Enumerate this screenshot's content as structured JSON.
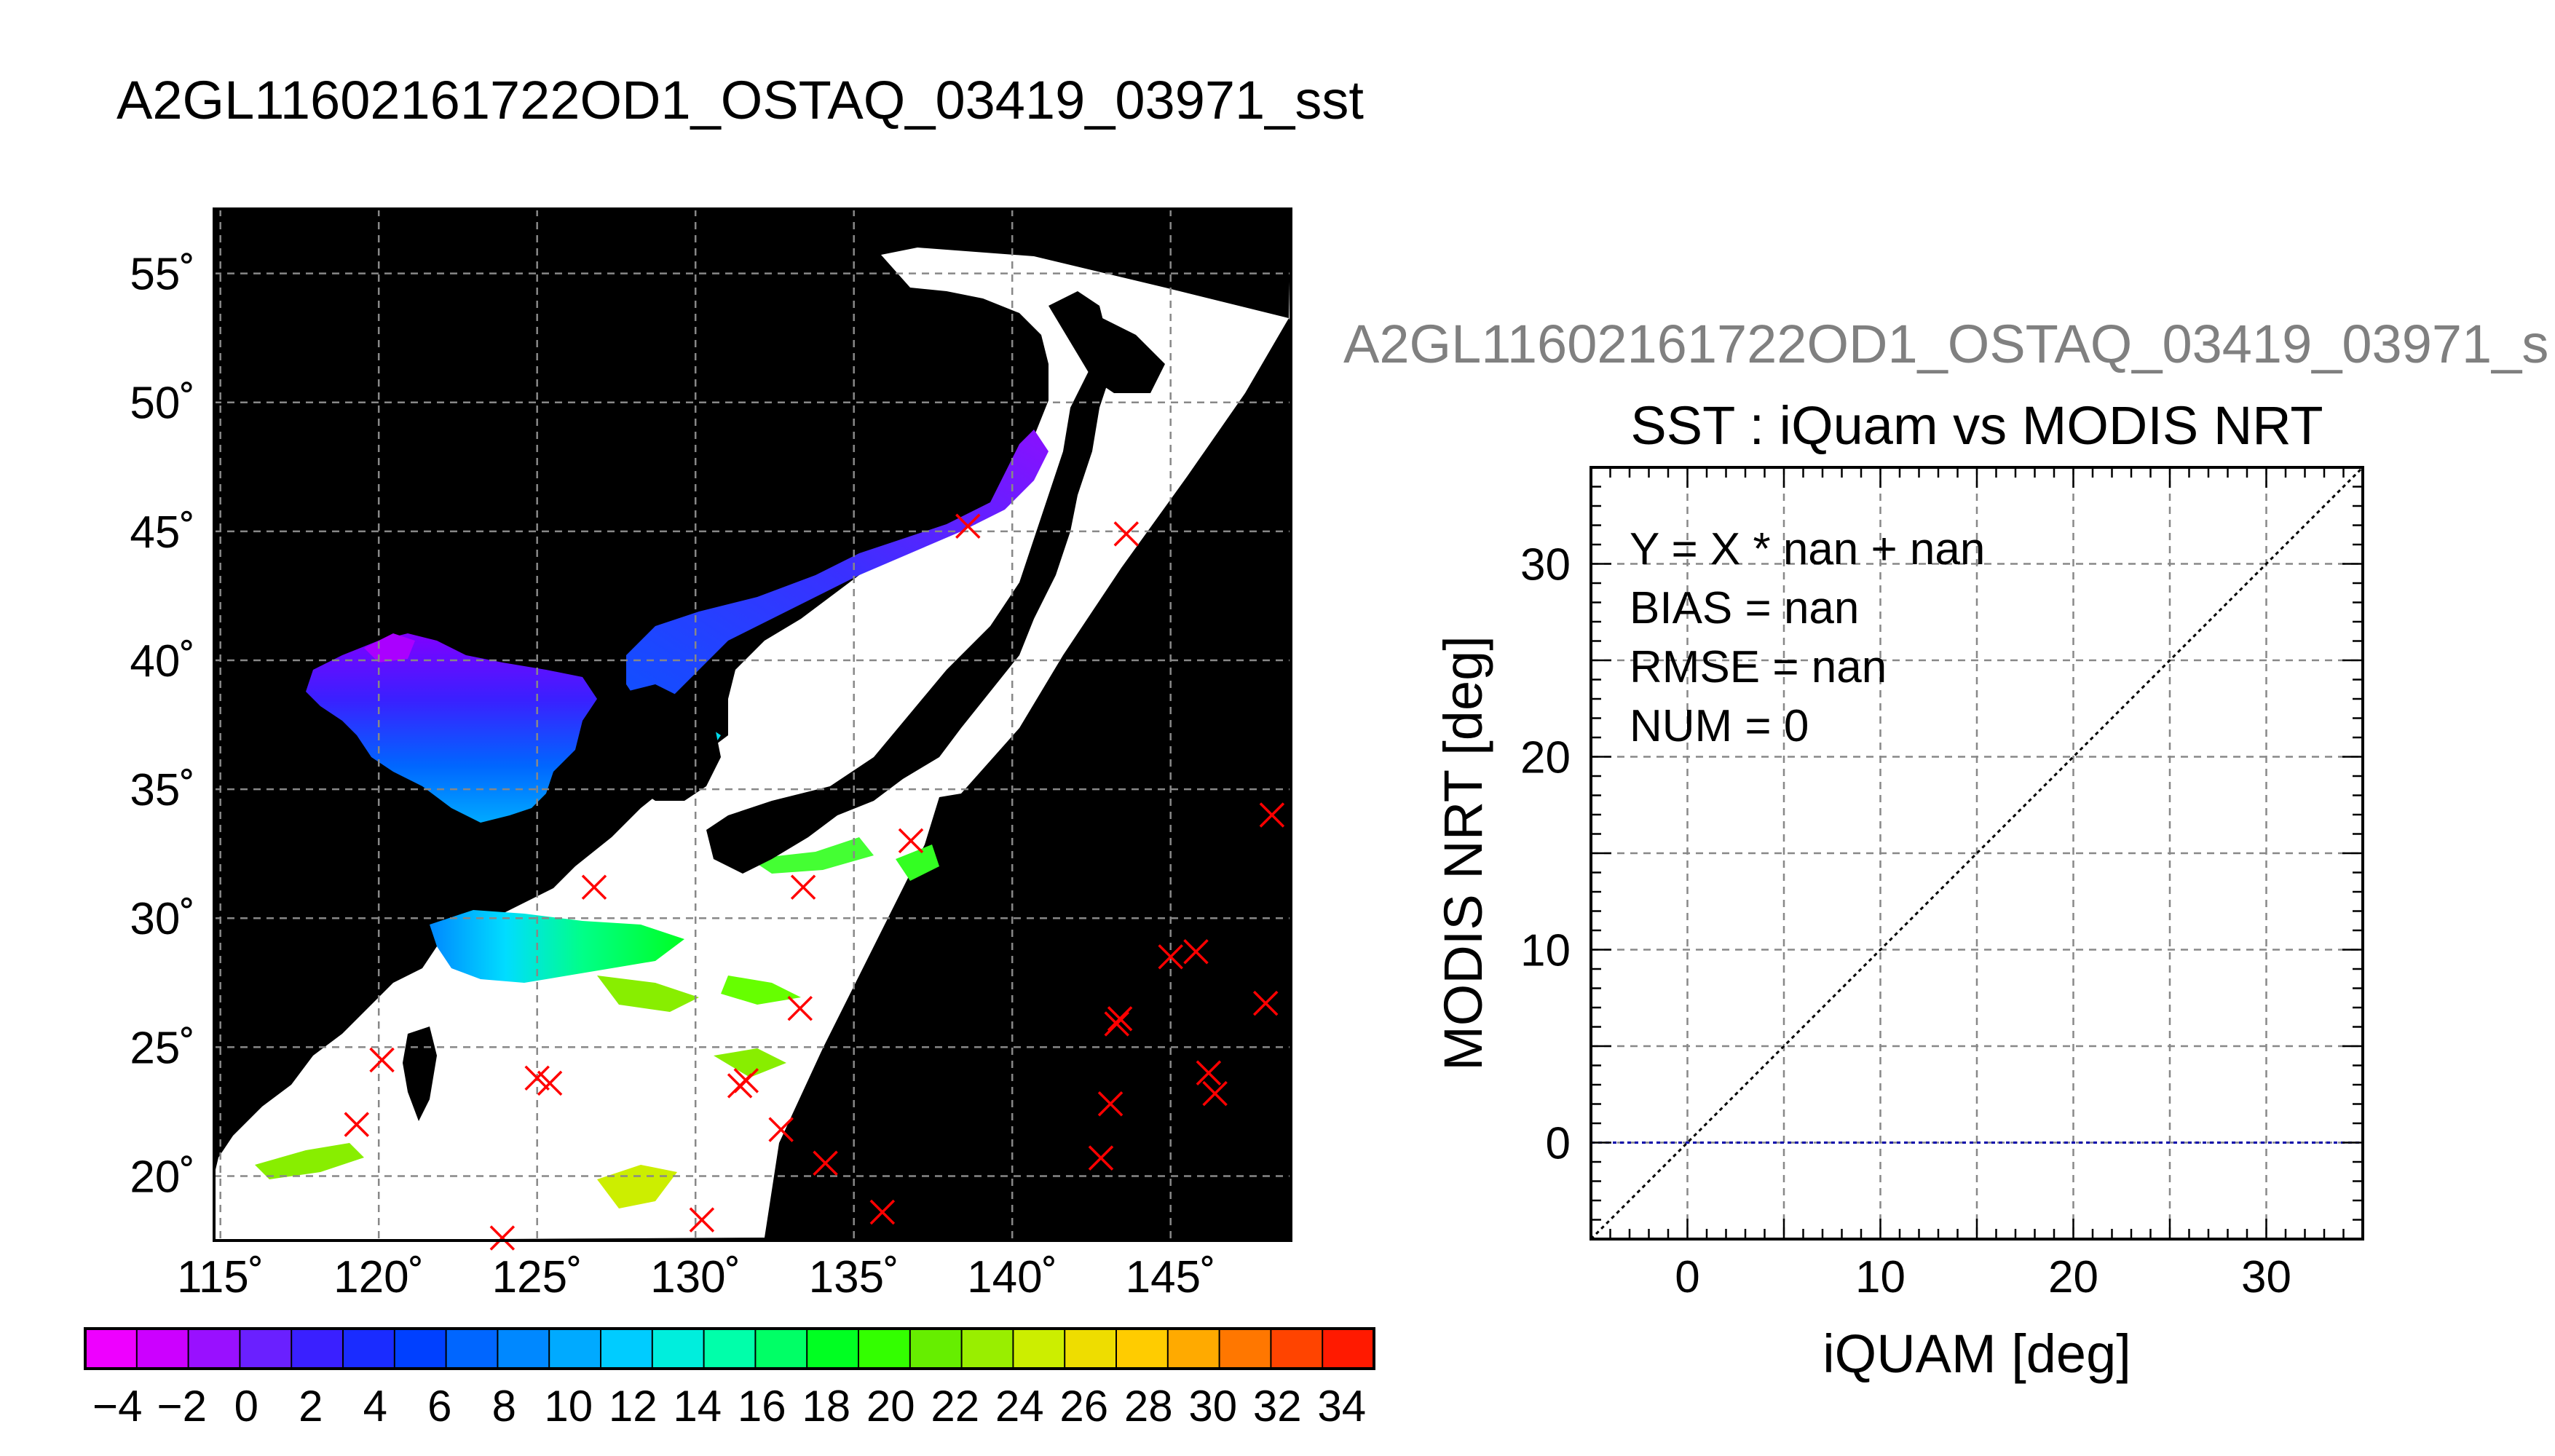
{
  "page": {
    "title": "A2GL11602161722OD1_OSTAQ_03419_03971_sst",
    "scatter_header": "A2GL11602161722OD1_OSTAQ_03419_03971_s"
  },
  "chart_data": [
    {
      "type": "map",
      "title": "A2GL11602161722OD1_OSTAQ_03419_03971_sst",
      "lon_ticks": [
        115,
        120,
        125,
        130,
        135,
        140,
        145
      ],
      "lat_ticks": [
        20,
        25,
        30,
        35,
        40,
        45,
        50,
        55
      ],
      "lon_range": [
        114.8,
        148.8
      ],
      "lat_range": [
        17.5,
        57.5
      ],
      "tick_suffix": "˚",
      "grid": true,
      "background": "#000000",
      "colorbar": {
        "min": -5,
        "max": 35,
        "step": 2,
        "labels": [
          "−4",
          "−2",
          "0",
          "2",
          "4",
          "6",
          "8",
          "10",
          "12",
          "14",
          "16",
          "18",
          "20",
          "22",
          "24",
          "26",
          "28",
          "30",
          "32",
          "34"
        ],
        "label_values": [
          -4,
          -2,
          0,
          2,
          4,
          6,
          8,
          10,
          12,
          14,
          16,
          18,
          20,
          22,
          24,
          26,
          28,
          30,
          32,
          34
        ],
        "colors": [
          "#ee00ff",
          "#cc00ff",
          "#9910ff",
          "#6a20ff",
          "#3a20ff",
          "#1a2cff",
          "#0040ff",
          "#0066ff",
          "#0088ff",
          "#00aaff",
          "#00ccff",
          "#00eedd",
          "#00ffaa",
          "#00ff66",
          "#00ff22",
          "#33ff00",
          "#66ee00",
          "#99ee00",
          "#ccee00",
          "#eedd00",
          "#ffcc00",
          "#ffaa00",
          "#ff7700",
          "#ff4400",
          "#ff1a00"
        ]
      },
      "matchup_points_lonlat": [
        [
          138.6,
          45.2
        ],
        [
          143.6,
          44.9
        ],
        [
          148.2,
          34.0
        ],
        [
          136.8,
          33.0
        ],
        [
          133.4,
          31.2
        ],
        [
          126.8,
          31.2
        ],
        [
          145.0,
          28.5
        ],
        [
          145.8,
          28.7
        ],
        [
          148.0,
          26.7
        ],
        [
          133.3,
          26.5
        ],
        [
          143.3,
          25.9
        ],
        [
          143.4,
          26.1
        ],
        [
          120.1,
          24.5
        ],
        [
          125.0,
          23.8
        ],
        [
          125.4,
          23.6
        ],
        [
          131.6,
          23.7
        ],
        [
          131.4,
          23.5
        ],
        [
          146.2,
          24.0
        ],
        [
          146.4,
          23.2
        ],
        [
          143.1,
          22.8
        ],
        [
          119.3,
          22.0
        ],
        [
          132.7,
          21.8
        ],
        [
          142.8,
          20.7
        ],
        [
          134.1,
          20.5
        ],
        [
          135.9,
          18.6
        ],
        [
          130.2,
          18.3
        ],
        [
          123.9,
          17.6
        ]
      ],
      "marker_color": "#ff0000"
    },
    {
      "type": "scatter",
      "title": "SST : iQuam vs MODIS NRT",
      "xlabel": "iQUAM [deg]",
      "ylabel": "MODIS NRT [deg]",
      "xlim": [
        -5,
        35
      ],
      "ylim": [
        -5,
        35
      ],
      "xticks": [
        0,
        10,
        20,
        30
      ],
      "yticks": [
        0,
        10,
        20,
        30
      ],
      "grid_step": 5,
      "grid": true,
      "stats": [
        "Y = X * nan + nan",
        "BIAS = nan",
        "RMSE = nan",
        "NUM = 0"
      ],
      "series": [],
      "one_to_one_line": {
        "from": [
          -5,
          -5
        ],
        "to": [
          35,
          35
        ],
        "color": "#000000",
        "style": "dotted"
      },
      "zero_line": {
        "y": 0,
        "color": "#0000aa",
        "style": "dotted"
      }
    }
  ]
}
